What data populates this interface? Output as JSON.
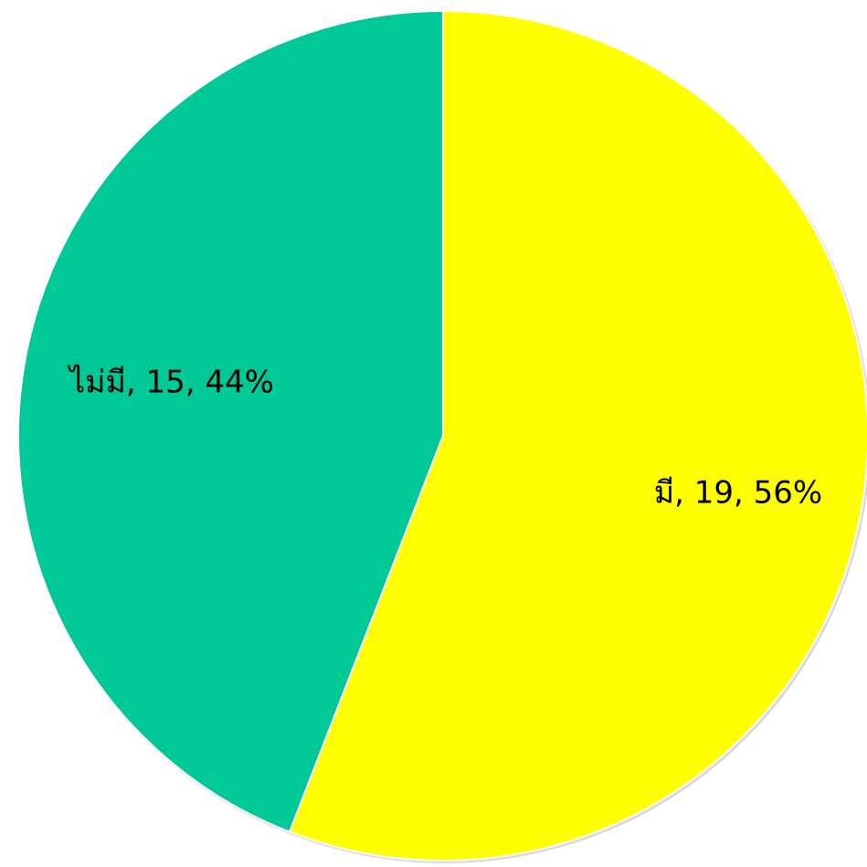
{
  "chart_data": {
    "type": "pie",
    "title": "",
    "start_angle_deg": 0,
    "direction": "clockwise",
    "slices": [
      {
        "category": "มี",
        "value": 19,
        "percent": 56,
        "label": "มี, 19, 56%",
        "color": "#FFFF00"
      },
      {
        "category": "ไม่มี",
        "value": 15,
        "percent": 44,
        "label": "ไม่มี, 15, 44%",
        "color": "#00C896"
      }
    ],
    "legend": "none",
    "data_labels": "category, value, percent"
  }
}
